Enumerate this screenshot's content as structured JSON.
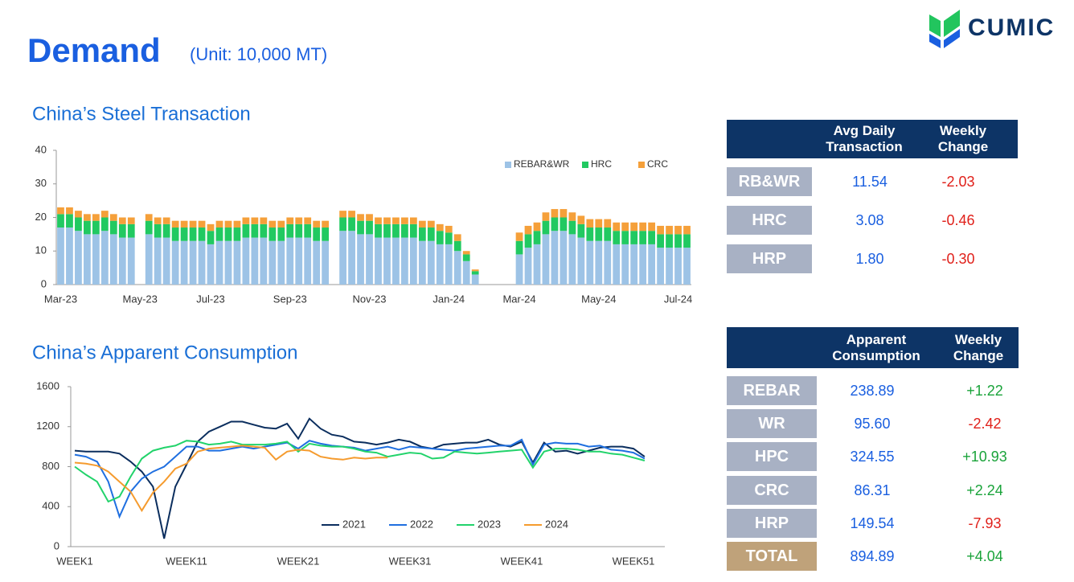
{
  "header": {
    "title": "Demand",
    "unit": "(Unit: 10,000 MT)",
    "logo": "CUMIC"
  },
  "chart_data": [
    {
      "type": "bar",
      "stacked": true,
      "title": "China’s Steel Transaction",
      "categories": [
        "Mar-23",
        null,
        null,
        null,
        null,
        null,
        null,
        null,
        null,
        "May-23",
        null,
        null,
        null,
        null,
        null,
        null,
        null,
        "Jul-23",
        null,
        null,
        null,
        null,
        null,
        null,
        null,
        null,
        "Sep-23",
        null,
        null,
        null,
        null,
        null,
        null,
        null,
        null,
        "Nov-23",
        null,
        null,
        null,
        null,
        null,
        null,
        null,
        null,
        "Jan-24",
        null,
        null,
        null,
        null,
        null,
        null,
        null,
        "Mar-24",
        null,
        null,
        null,
        null,
        null,
        null,
        null,
        null,
        "May-24",
        null,
        null,
        null,
        null,
        null,
        null,
        null,
        null,
        "Jul-24",
        null
      ],
      "series": [
        {
          "name": "REBAR&WR",
          "color": "#9dc3e6",
          "values": [
            17,
            17,
            16,
            15,
            15,
            16,
            15,
            14,
            14,
            null,
            15,
            14,
            14,
            13,
            13,
            13,
            13,
            12,
            13,
            13,
            13,
            14,
            14,
            14,
            13,
            13,
            14,
            14,
            14,
            13,
            13,
            null,
            16,
            16,
            15,
            15,
            14,
            14,
            14,
            14,
            14,
            13,
            13,
            12,
            12,
            10,
            7,
            3,
            null,
            null,
            null,
            null,
            9,
            11,
            12,
            15,
            16,
            16,
            15,
            14,
            13,
            13,
            13,
            12,
            12,
            12,
            12,
            12,
            11,
            11,
            11,
            11
          ]
        },
        {
          "name": "HRC",
          "color": "#21c961",
          "values": [
            4,
            4,
            4,
            4,
            4,
            4,
            4,
            4,
            4,
            null,
            4,
            4,
            4,
            4,
            4,
            4,
            4,
            4,
            4,
            4,
            4,
            4,
            4,
            4,
            4,
            4,
            4,
            4,
            4,
            4,
            4,
            null,
            4,
            4,
            4,
            4,
            4,
            4,
            4,
            4,
            4,
            4,
            4,
            4,
            3.5,
            3,
            2,
            1,
            null,
            null,
            null,
            null,
            4,
            4,
            4,
            4,
            4,
            4,
            4,
            4,
            4,
            4,
            4,
            4,
            4,
            4,
            4,
            4,
            4,
            4,
            4,
            4
          ]
        },
        {
          "name": "CRC",
          "color": "#f5a03a",
          "values": [
            2,
            2,
            2,
            2,
            2,
            2,
            2,
            2,
            2,
            null,
            2,
            2,
            2,
            2,
            2,
            2,
            2,
            2,
            2,
            2,
            2,
            2,
            2,
            2,
            2,
            2,
            2,
            2,
            2,
            2,
            2,
            null,
            2,
            2,
            2,
            2,
            2,
            2,
            2,
            2,
            2,
            2,
            2,
            2,
            2,
            2,
            1,
            0.5,
            null,
            null,
            null,
            null,
            2.5,
            2.5,
            2.5,
            2.5,
            2.5,
            2.5,
            2.5,
            2.5,
            2.5,
            2.5,
            2.5,
            2.5,
            2.5,
            2.5,
            2.5,
            2.5,
            2.5,
            2.5,
            2.5,
            2.5
          ]
        }
      ],
      "ylim": [
        0,
        40
      ],
      "yticks": [
        0,
        10,
        20,
        30,
        40
      ],
      "grid": false,
      "legend": "top-right"
    },
    {
      "type": "line",
      "title": "China’s Apparent Consumption",
      "categories": [
        "WEEK1",
        null,
        null,
        null,
        null,
        null,
        null,
        null,
        null,
        null,
        "WEEK11",
        null,
        null,
        null,
        null,
        null,
        null,
        null,
        null,
        null,
        "WEEK21",
        null,
        null,
        null,
        null,
        null,
        null,
        null,
        null,
        null,
        "WEEK31",
        null,
        null,
        null,
        null,
        null,
        null,
        null,
        null,
        null,
        "WEEK41",
        null,
        null,
        null,
        null,
        null,
        null,
        null,
        null,
        null,
        "WEEK51",
        null
      ],
      "series": [
        {
          "name": "2021",
          "color": "#0b2e5e",
          "values": [
            960,
            950,
            950,
            950,
            930,
            850,
            750,
            600,
            80,
            600,
            820,
            1050,
            1150,
            1200,
            1250,
            1250,
            1220,
            1190,
            1180,
            1230,
            1080,
            1280,
            1180,
            1120,
            1100,
            1050,
            1040,
            1020,
            1040,
            1070,
            1050,
            1000,
            980,
            1020,
            1030,
            1040,
            1040,
            1070,
            1020,
            1000,
            1050,
            840,
            1040,
            950,
            960,
            930,
            960,
            990,
            1000,
            1000,
            980,
            900
          ]
        },
        {
          "name": "2022",
          "color": "#1f6fe0",
          "values": [
            920,
            900,
            850,
            650,
            300,
            550,
            680,
            750,
            800,
            900,
            1000,
            1000,
            960,
            960,
            980,
            1000,
            980,
            1000,
            1020,
            1040,
            980,
            1060,
            1030,
            1010,
            1000,
            990,
            960,
            980,
            1000,
            970,
            1000,
            990,
            980,
            970,
            960,
            980,
            990,
            1000,
            1010,
            1010,
            1070,
            820,
            1020,
            1040,
            1030,
            1030,
            1000,
            1010,
            970,
            960,
            940,
            880
          ]
        },
        {
          "name": "2023",
          "color": "#22d36b",
          "values": [
            800,
            720,
            650,
            450,
            500,
            700,
            880,
            960,
            990,
            1010,
            1060,
            1050,
            1020,
            1030,
            1050,
            1020,
            1020,
            1020,
            1030,
            1050,
            950,
            1030,
            1010,
            1000,
            1000,
            980,
            950,
            940,
            900,
            920,
            940,
            930,
            880,
            890,
            950,
            940,
            930,
            940,
            950,
            960,
            970,
            790,
            950,
            980,
            980,
            970,
            950,
            950,
            930,
            920,
            890,
            860
          ]
        },
        {
          "name": "2024",
          "color": "#f59b2e",
          "values": [
            840,
            830,
            810,
            750,
            650,
            550,
            360,
            540,
            650,
            780,
            830,
            950,
            980,
            990,
            1000,
            1010,
            1000,
            990,
            870,
            950,
            970,
            960,
            900,
            880,
            870,
            890,
            880,
            890,
            890,
            null,
            null,
            null,
            null,
            null,
            null,
            null,
            null,
            null,
            null,
            null,
            null,
            null,
            null,
            null,
            null,
            null,
            null,
            null,
            null,
            null,
            null,
            null
          ]
        }
      ],
      "ylim": [
        0,
        1600
      ],
      "yticks": [
        0,
        400,
        800,
        1200,
        1600
      ],
      "grid": false,
      "legend": "bottom"
    }
  ],
  "tables": [
    {
      "header": [
        "Avg Daily Transaction",
        "Weekly Change"
      ],
      "rows": [
        [
          "RB&WR",
          "11.54",
          "-2.03"
        ],
        [
          "HRC",
          "3.08",
          "-0.46"
        ],
        [
          "HRP",
          "1.80",
          "-0.30"
        ]
      ]
    },
    {
      "header": [
        "Apparent Consumption",
        "Weekly Change"
      ],
      "rows": [
        [
          "REBAR",
          "238.89",
          "+1.22"
        ],
        [
          "WR",
          "95.60",
          "-2.42"
        ],
        [
          "HPC",
          "324.55",
          "+10.93"
        ],
        [
          "CRC",
          "86.31",
          "+2.24"
        ],
        [
          "HRP",
          "149.54",
          "-7.93"
        ],
        [
          "TOTAL",
          "894.89",
          "+4.04"
        ]
      ]
    }
  ]
}
